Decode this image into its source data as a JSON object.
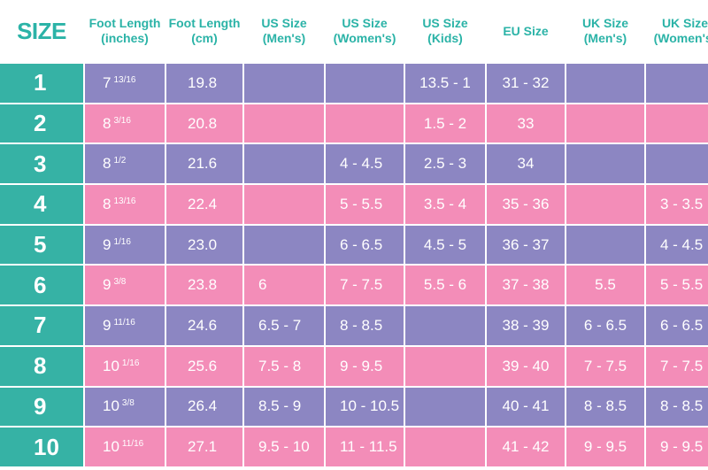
{
  "colors": {
    "header_text": "#2bb3a7",
    "size_column": "#36b2a5",
    "row_purple": "#8c86c2",
    "row_pink": "#f38db8",
    "cell_text": "#ffffff"
  },
  "headers": [
    {
      "line1": "SIZE",
      "line2": ""
    },
    {
      "line1": "Foot Length",
      "line2": "(inches)"
    },
    {
      "line1": "Foot Length",
      "line2": "(cm)"
    },
    {
      "line1": "US Size",
      "line2": "(Men's)"
    },
    {
      "line1": "US Size",
      "line2": "(Women's)"
    },
    {
      "line1": "US Size",
      "line2": "(Kids)"
    },
    {
      "line1": "EU Size",
      "line2": ""
    },
    {
      "line1": "UK Size",
      "line2": "(Men's)"
    },
    {
      "line1": "UK Size",
      "line2": "(Women's)"
    }
  ],
  "rows": [
    {
      "size": "1",
      "inch_whole": "7",
      "inch_frac": "13/16",
      "cm": "19.8",
      "us_men": "",
      "us_women": "",
      "us_kids": "13.5 - 1",
      "eu": "31 - 32",
      "uk_men": "",
      "uk_women": ""
    },
    {
      "size": "2",
      "inch_whole": "8",
      "inch_frac": "3/16",
      "cm": "20.8",
      "us_men": "",
      "us_women": "",
      "us_kids": "1.5 - 2",
      "eu": "33",
      "uk_men": "",
      "uk_women": ""
    },
    {
      "size": "3",
      "inch_whole": "8",
      "inch_frac": "1/2",
      "cm": "21.6",
      "us_men": "",
      "us_women": "4 - 4.5",
      "us_kids": "2.5 - 3",
      "eu": "34",
      "uk_men": "",
      "uk_women": ""
    },
    {
      "size": "4",
      "inch_whole": "8",
      "inch_frac": "13/16",
      "cm": "22.4",
      "us_men": "",
      "us_women": "5 - 5.5",
      "us_kids": "3.5 - 4",
      "eu": "35 - 36",
      "uk_men": "",
      "uk_women": "3 - 3.5"
    },
    {
      "size": "5",
      "inch_whole": "9",
      "inch_frac": "1/16",
      "cm": "23.0",
      "us_men": "",
      "us_women": "6 - 6.5",
      "us_kids": "4.5 - 5",
      "eu": "36 - 37",
      "uk_men": "",
      "uk_women": "4 - 4.5"
    },
    {
      "size": "6",
      "inch_whole": "9",
      "inch_frac": "3/8",
      "cm": "23.8",
      "us_men": "6",
      "us_women": "7 - 7.5",
      "us_kids": "5.5 - 6",
      "eu": "37 - 38",
      "uk_men": "5.5",
      "uk_women": "5 - 5.5"
    },
    {
      "size": "7",
      "inch_whole": "9",
      "inch_frac": "11/16",
      "cm": "24.6",
      "us_men": "6.5 - 7",
      "us_women": "8 - 8.5",
      "us_kids": "",
      "eu": "38 - 39",
      "uk_men": "6 - 6.5",
      "uk_women": "6 - 6.5"
    },
    {
      "size": "8",
      "inch_whole": "10",
      "inch_frac": "1/16",
      "cm": "25.6",
      "us_men": "7.5 - 8",
      "us_women": "9 - 9.5",
      "us_kids": "",
      "eu": "39 - 40",
      "uk_men": "7 - 7.5",
      "uk_women": "7 - 7.5"
    },
    {
      "size": "9",
      "inch_whole": "10",
      "inch_frac": "3/8",
      "cm": "26.4",
      "us_men": "8.5 - 9",
      "us_women": "10 - 10.5",
      "us_kids": "",
      "eu": "40 - 41",
      "uk_men": "8 - 8.5",
      "uk_women": "8 - 8.5"
    },
    {
      "size": "10",
      "inch_whole": "10",
      "inch_frac": "11/16",
      "cm": "27.1",
      "us_men": "9.5 - 10",
      "us_women": "11 - 11.5",
      "us_kids": "",
      "eu": "41 - 42",
      "uk_men": "9 - 9.5",
      "uk_women": "9 - 9.5"
    }
  ]
}
